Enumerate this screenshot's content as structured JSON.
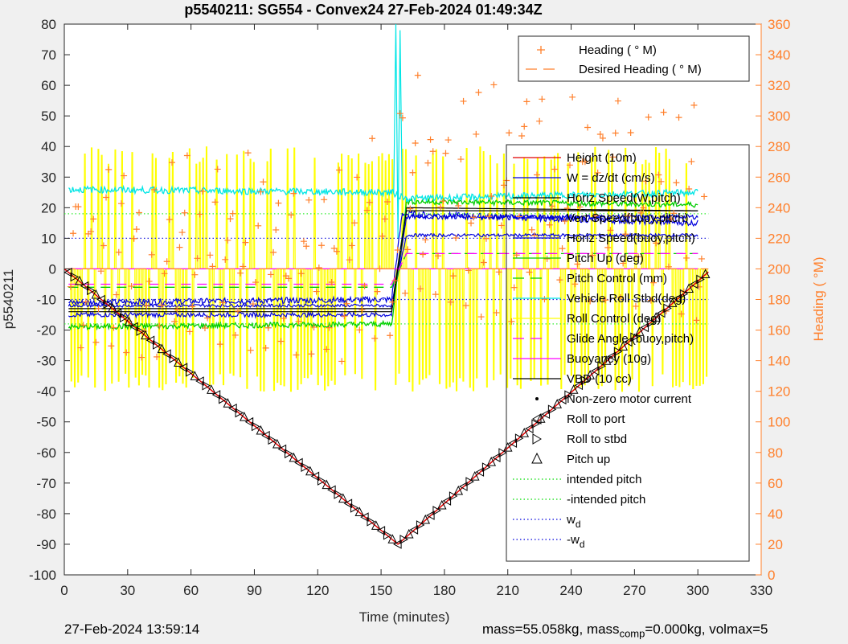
{
  "chart_data": {
    "type": "line",
    "title": "p5540211: SG554 - Convex24 27-Feb-2024 01:49:34Z",
    "xlabel": "Time (minutes)",
    "ylabel": "p5540211",
    "ylabel_right": "Heading (  °M)",
    "xlim": [
      0,
      330
    ],
    "ylim": [
      -100,
      80
    ],
    "ylim_right": [
      0,
      360
    ],
    "xticks": [
      "0",
      "30",
      "60",
      "90",
      "120",
      "150",
      "180",
      "210",
      "240",
      "270",
      "300",
      "330"
    ],
    "yticks": [
      "80",
      "70",
      "60",
      "50",
      "40",
      "30",
      "20",
      "10",
      "0",
      "-10",
      "-20",
      "-30",
      "-40",
      "-50",
      "-60",
      "-70",
      "-80",
      "-90",
      "-100"
    ],
    "yticks_right": [
      "360",
      "340",
      "320",
      "300",
      "280",
      "260",
      "240",
      "220",
      "200",
      "180",
      "160",
      "140",
      "120",
      "100",
      "80",
      "60",
      "40",
      "20",
      "0"
    ],
    "legend_top": [
      {
        "label": "Heading (  ° M)",
        "color": "#ff7f2a",
        "style": "plus"
      },
      {
        "label": "Desired Heading (    ° M)",
        "color": "#ff7f2a",
        "style": "dash"
      }
    ],
    "legend_main": [
      {
        "label": "Height (10m)",
        "color": "#e00000",
        "style": "solid"
      },
      {
        "label": "W = dz/dt (cm/s)",
        "color": "#0000dd",
        "style": "solid"
      },
      {
        "label": "Horiz Speed(W,pitch)",
        "color": "#000000",
        "style": "solid"
      },
      {
        "label": "Vert Speed(buoy,pitch)",
        "color": "#0000dd",
        "style": "solid"
      },
      {
        "label": "Horiz Speed(buoy,pitch)",
        "color": "#0000dd",
        "style": "solid"
      },
      {
        "label": "Pitch Up (deg)",
        "color": "#00cc00",
        "style": "solid"
      },
      {
        "label": "Pitch Control (mm)",
        "color": "#00cc00",
        "style": "dash"
      },
      {
        "label": "Vehicle Roll Stbd(deg)",
        "color": "#00e5e5",
        "style": "solid"
      },
      {
        "label": "Roll Control (deg)",
        "color": "#ffff00",
        "style": "solid"
      },
      {
        "label": "Glide Angle (buoy,pitch)",
        "color": "#ff00ff",
        "style": "dash"
      },
      {
        "label": "Buoyancy (10g)",
        "color": "#ff00ff",
        "style": "solid"
      },
      {
        "label": "VBD (10 cc)",
        "color": "#000000",
        "style": "solid"
      },
      {
        "label": "Non-zero motor current",
        "color": "#000000",
        "style": "dot"
      },
      {
        "label": "Roll to port",
        "color": "#000000",
        "style": "tri-left"
      },
      {
        "label": "Roll to stbd",
        "color": "#000000",
        "style": "tri-right"
      },
      {
        "label": "Pitch up",
        "color": "#000000",
        "style": "tri-up"
      },
      {
        "label": "intended pitch",
        "color": "#00dd00",
        "style": "dotted"
      },
      {
        "label": "-intended pitch",
        "color": "#00dd00",
        "style": "dotted"
      },
      {
        "label": "w",
        "sub": "d",
        "color": "#0000dd",
        "style": "dotted"
      },
      {
        "label": "-w",
        "sub": "d",
        "color": "#0000dd",
        "style": "dotted"
      }
    ],
    "series": [
      {
        "name": "Height (10m)",
        "x": [
          0,
          158,
          305
        ],
        "y": [
          0,
          -90,
          -1
        ]
      },
      {
        "name": "W = dz/dt (cm/s)",
        "x": [
          2,
          155,
          160,
          300
        ],
        "y": [
          -11,
          -10,
          18,
          15
        ]
      },
      {
        "name": "Horiz Speed(W,pitch)",
        "x": [
          2,
          155,
          162,
          300
        ],
        "y": [
          -13,
          -13,
          20,
          19
        ]
      },
      {
        "name": "Vert Speed(buoy,pitch)",
        "x": [
          2,
          155,
          162,
          300
        ],
        "y": [
          -15,
          -15,
          17,
          17
        ]
      },
      {
        "name": "Horiz Speed(buoy,pitch)",
        "x": [
          2,
          155,
          162,
          300
        ],
        "y": [
          -12,
          -12,
          11,
          11
        ]
      },
      {
        "name": "Pitch Up (deg)",
        "x": [
          2,
          155,
          162,
          300
        ],
        "y": [
          -19,
          -18,
          22,
          21
        ]
      },
      {
        "name": "Pitch Control (mm)",
        "x": [
          2,
          155,
          162,
          300
        ],
        "y": [
          -6,
          -6,
          5,
          5
        ]
      },
      {
        "name": "Vehicle Roll Stbd(deg)",
        "x": [
          2,
          155,
          162,
          300
        ],
        "y": [
          26,
          25,
          23,
          25
        ]
      },
      {
        "name": "Glide Angle (buoy,pitch)",
        "x": [
          2,
          155,
          162,
          300
        ],
        "y": [
          -5,
          -5,
          5,
          5
        ]
      },
      {
        "name": "Buoyancy (10g)",
        "x": [
          2,
          155,
          162,
          300
        ],
        "y": [
          0,
          0,
          0,
          0
        ]
      },
      {
        "name": "VBD (10 cc)",
        "x": [
          2,
          155,
          162,
          300
        ],
        "y": [
          -14,
          -14,
          19,
          19
        ]
      },
      {
        "name": "intended pitch",
        "x": [
          0,
          305
        ],
        "y": [
          18,
          18
        ]
      },
      {
        "name": "-intended pitch",
        "x": [
          0,
          305
        ],
        "y": [
          -18,
          -18
        ]
      },
      {
        "name": "w",
        "x": [
          0,
          305
        ],
        "y": [
          10,
          10
        ]
      },
      {
        "name": "-w",
        "x": [
          0,
          305
        ],
        "y": [
          -10,
          -10
        ]
      }
    ],
    "roll_control_range": [
      -40,
      40
    ],
    "heading_dive_range": [
      120,
      290
    ],
    "heading_climb_range": [
      140,
      345
    ]
  },
  "footer": {
    "left": "27-Feb-2024 13:59:14",
    "right_prefix": "mass=55.058kg, mass",
    "right_sub": "comp",
    "right_suffix": "=0.000kg, volmax=5"
  }
}
